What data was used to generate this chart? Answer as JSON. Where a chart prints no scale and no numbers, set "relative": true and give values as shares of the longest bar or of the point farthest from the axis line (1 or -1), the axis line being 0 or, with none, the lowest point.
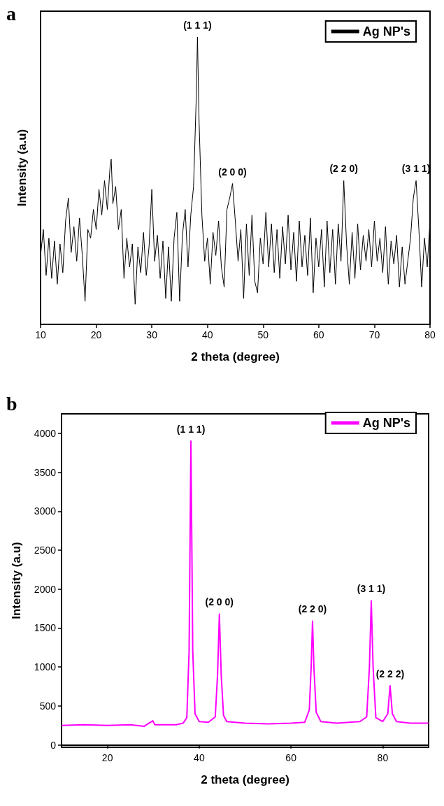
{
  "chart_data": [
    {
      "type": "line",
      "title": "a",
      "xlabel": "2 theta (degree)",
      "ylabel": "Intensity (a.u)",
      "relative": true,
      "xlim": [
        10,
        80
      ],
      "xticks": [
        10,
        20,
        30,
        40,
        50,
        60,
        70,
        80
      ],
      "legend": "top right",
      "marker": "none",
      "tick_labels": "x",
      "series": [
        {
          "name": "Ag NP's",
          "color": "#000000",
          "x": [
            10,
            10.5,
            11,
            11.5,
            12,
            12.5,
            13,
            13.5,
            14,
            14.5,
            15,
            15.5,
            16,
            16.5,
            17,
            17.5,
            18,
            18.5,
            19,
            19.5,
            20,
            20.5,
            21,
            21.5,
            22,
            22.5,
            22.7,
            23,
            23.5,
            24,
            24.5,
            25,
            25.5,
            26,
            26.5,
            27,
            27.5,
            28,
            28.5,
            29,
            29.5,
            30,
            30.5,
            31,
            31.5,
            32,
            32.5,
            33,
            33.5,
            34,
            34.5,
            35,
            35.5,
            36,
            36.5,
            37,
            37.5,
            38,
            38.2,
            38.5,
            39,
            39.5,
            40,
            40.5,
            41,
            41.5,
            42,
            42.5,
            43,
            43.5,
            44,
            44.5,
            45,
            45.5,
            46,
            46.5,
            47,
            47.5,
            48,
            48.5,
            49,
            49.5,
            50,
            50.5,
            51,
            51.5,
            52,
            52.5,
            53,
            53.5,
            54,
            54.5,
            55,
            55.5,
            56,
            56.5,
            57,
            57.5,
            58,
            58.5,
            59,
            59.5,
            60,
            60.5,
            61,
            61.5,
            62,
            62.5,
            63,
            63.5,
            64,
            64.5,
            65,
            65.5,
            66,
            66.5,
            67,
            67.5,
            68,
            68.5,
            69,
            69.5,
            70,
            70.5,
            71,
            71.5,
            72,
            72.5,
            73,
            73.5,
            74,
            74.5,
            75,
            75.5,
            76,
            76.5,
            77,
            77.5,
            78,
            78.5,
            79,
            79.5,
            80
          ],
          "values": [
            0.24,
            0.33,
            0.17,
            0.3,
            0.16,
            0.29,
            0.14,
            0.28,
            0.18,
            0.36,
            0.44,
            0.25,
            0.34,
            0.22,
            0.37,
            0.24,
            0.08,
            0.33,
            0.3,
            0.4,
            0.33,
            0.47,
            0.38,
            0.5,
            0.4,
            0.55,
            0.575,
            0.42,
            0.48,
            0.33,
            0.4,
            0.16,
            0.3,
            0.2,
            0.28,
            0.07,
            0.27,
            0.18,
            0.32,
            0.17,
            0.27,
            0.47,
            0.22,
            0.31,
            0.16,
            0.29,
            0.09,
            0.27,
            0.08,
            0.3,
            0.39,
            0.08,
            0.31,
            0.4,
            0.2,
            0.38,
            0.48,
            0.8,
            1,
            0.7,
            0.38,
            0.22,
            0.3,
            0.14,
            0.32,
            0.24,
            0.36,
            0.2,
            0.13,
            0.4,
            0.44,
            0.49,
            0.36,
            0.22,
            0.33,
            0.09,
            0.35,
            0.17,
            0.38,
            0.15,
            0.11,
            0.3,
            0.21,
            0.39,
            0.2,
            0.35,
            0.18,
            0.33,
            0.16,
            0.34,
            0.21,
            0.38,
            0.19,
            0.32,
            0.15,
            0.36,
            0.2,
            0.31,
            0.17,
            0.37,
            0.11,
            0.3,
            0.2,
            0.33,
            0.13,
            0.36,
            0.18,
            0.33,
            0.14,
            0.35,
            0.22,
            0.5,
            0.28,
            0.14,
            0.32,
            0.16,
            0.35,
            0.19,
            0.31,
            0.22,
            0.33,
            0.2,
            0.36,
            0.22,
            0.3,
            0.18,
            0.34,
            0.14,
            0.29,
            0.21,
            0.31,
            0.13,
            0.27,
            0.14,
            0.22,
            0.3,
            0.44,
            0.5,
            0.33,
            0.13,
            0.3,
            0.2,
            0.36
          ]
        }
      ],
      "annotations": [
        {
          "text": "(1 1 1)",
          "x": 38.2,
          "y": 1
        },
        {
          "text": "(2 0 0)",
          "x": 44.5,
          "y": 0.49
        },
        {
          "text": "(2 2 0)",
          "x": 64.5,
          "y": 0.5
        },
        {
          "text": "(3 1 1)",
          "x": 77.5,
          "y": 0.5
        }
      ]
    },
    {
      "type": "line",
      "title": "b",
      "xlabel": "2 theta (degree)",
      "ylabel": "Intensity (a.u)",
      "xlim": [
        10,
        90
      ],
      "xticks": [
        20,
        40,
        60,
        80
      ],
      "ylim": [
        -30,
        4250
      ],
      "yticks": [
        0,
        500,
        1000,
        1500,
        2000,
        2500,
        3000,
        3500,
        4000
      ],
      "legend": "top right",
      "marker": "none",
      "series": [
        {
          "name": "Ag NP's",
          "color": "#ff00ff",
          "x": [
            10,
            15,
            20,
            25,
            28,
            29.9,
            30.3,
            35,
            36.5,
            37.3,
            37.8,
            38.2,
            38.6,
            39.1,
            40,
            42,
            43.5,
            44,
            44.4,
            44.8,
            45.3,
            46,
            50,
            55,
            60,
            63,
            64,
            64.4,
            64.7,
            65,
            65.5,
            66.5,
            70,
            75,
            76.5,
            77.1,
            77.5,
            77.9,
            78.5,
            80,
            81.1,
            81.6,
            82.1,
            83,
            86,
            90
          ],
          "values": [
            250,
            260,
            250,
            260,
            240,
            310,
            260,
            260,
            280,
            350,
            1200,
            3900,
            1200,
            400,
            300,
            290,
            360,
            900,
            1680,
            900,
            380,
            300,
            280,
            270,
            280,
            290,
            450,
            1000,
            1590,
            1000,
            420,
            300,
            280,
            300,
            360,
            1000,
            1850,
            1000,
            350,
            300,
            400,
            760,
            400,
            300,
            280,
            280
          ]
        }
      ],
      "annotations": [
        {
          "text": "(1 1 1)",
          "x": 38.2,
          "y": 3900
        },
        {
          "text": "(2 0 0)",
          "x": 44.4,
          "y": 1680
        },
        {
          "text": "(2 2 0)",
          "x": 64.7,
          "y": 1590
        },
        {
          "text": "(3 1 1)",
          "x": 77.5,
          "y": 1850
        },
        {
          "text": "(2 2 2)",
          "x": 81.6,
          "y": 760
        }
      ]
    }
  ]
}
